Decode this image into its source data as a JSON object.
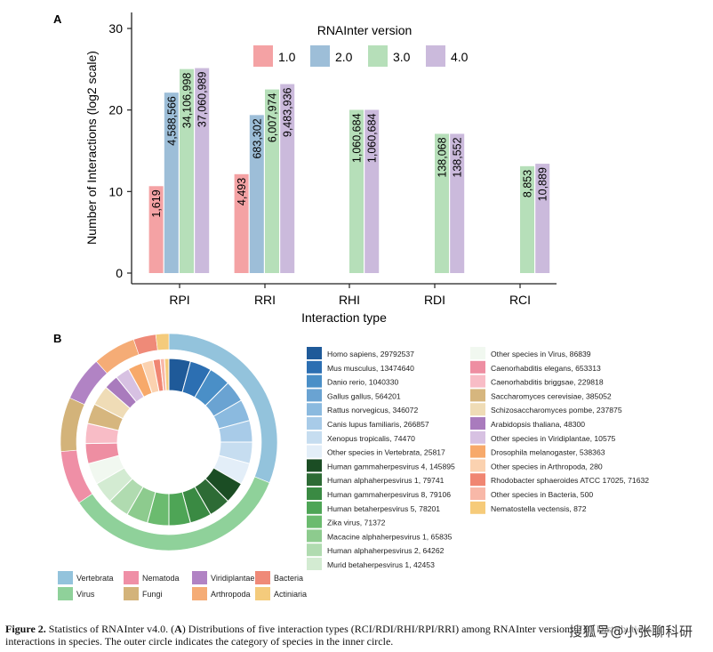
{
  "chart_data": [
    {
      "panel": "A",
      "type": "bar",
      "xlabel": "Interaction type",
      "ylabel": "Number of Interactions (log2 scale)",
      "ylim": [
        0,
        30
      ],
      "yticks": [
        0,
        10,
        20,
        30
      ],
      "legend_title": "RNAInter version",
      "categories": [
        "RPI",
        "RRI",
        "RHI",
        "RDI",
        "RCI"
      ],
      "series": [
        {
          "name": "1.0",
          "color": "#f4a2a4",
          "values": [
            10.66,
            12.13,
            null,
            null,
            null
          ],
          "labels": [
            "1,619",
            "4,493",
            "",
            "",
            ""
          ]
        },
        {
          "name": "2.0",
          "color": "#9dbed8",
          "values": [
            22.13,
            19.38,
            null,
            null,
            null
          ],
          "labels": [
            "4,588,566",
            "683,302",
            "",
            "",
            ""
          ]
        },
        {
          "name": "3.0",
          "color": "#b6dfb9",
          "values": [
            25.02,
            22.52,
            20.02,
            17.08,
            13.11
          ],
          "labels": [
            "34,106,998",
            "6,007,974",
            "1,060,684",
            "138,068",
            "8,853"
          ]
        },
        {
          "name": "4.0",
          "color": "#cbbadc",
          "values": [
            25.14,
            23.18,
            20.02,
            17.08,
            13.41
          ],
          "labels": [
            "37,060,989",
            "9,483,936",
            "1,060,684",
            "138,552",
            "10,889"
          ]
        }
      ]
    },
    {
      "panel": "B",
      "type": "pie",
      "inner_ring": [
        {
          "label": "Homo sapiens, 29792537",
          "color": "#1f5a99"
        },
        {
          "label": "Mus musculus, 13474640",
          "color": "#2c6fb2"
        },
        {
          "label": "Danio rerio, 1040330",
          "color": "#4a8fc7"
        },
        {
          "label": "Gallus gallus, 564201",
          "color": "#6aa3d2"
        },
        {
          "label": "Rattus norvegicus, 346072",
          "color": "#8bbadf"
        },
        {
          "label": "Canis lupus familiaris, 266857",
          "color": "#a8cbe8"
        },
        {
          "label": "Xenopus tropicalis, 74470",
          "color": "#c6ddf0"
        },
        {
          "label": "Other species in Vertebrata, 25817",
          "color": "#e3eef8"
        },
        {
          "label": "Human gammaherpesvirus 4, 145895",
          "color": "#1b4d24"
        },
        {
          "label": "Human alphaherpesvirus 1, 79741",
          "color": "#2d6b35"
        },
        {
          "label": "Human gammaherpesvirus 8, 79106",
          "color": "#3a8a43"
        },
        {
          "label": "Human betaherpesvirus 5, 78201",
          "color": "#4ea556"
        },
        {
          "label": "Zika virus, 71372",
          "color": "#6bbb6f"
        },
        {
          "label": "Macacine alphaherpesvirus 1, 65835",
          "color": "#8dcb8e"
        },
        {
          "label": "Human alphaherpesvirus 2, 64262",
          "color": "#b0dbb0"
        },
        {
          "label": "Murid betaherpesvirus 1, 42453",
          "color": "#d3ebd2"
        },
        {
          "label": "Other species in Virus, 86839",
          "color": "#f1f8f0"
        },
        {
          "label": "Caenorhabditis elegans, 653313",
          "color": "#ee8ea2"
        },
        {
          "label": "Caenorhabditis briggsae, 229818",
          "color": "#f8bcc6"
        },
        {
          "label": "Saccharomyces cerevisiae, 385052",
          "color": "#d6b67e"
        },
        {
          "label": "Schizosaccharomyces pombe, 237875",
          "color": "#efdcb6"
        },
        {
          "label": "Arabidopsis thaliana, 48300",
          "color": "#a97bbd"
        },
        {
          "label": "Other species in Viridiplantae, 10575",
          "color": "#d7c1e2"
        },
        {
          "label": "Drosophila melanogaster, 538363",
          "color": "#f7a96a"
        },
        {
          "label": "Other species in Arthropoda, 280",
          "color": "#fbd2b0"
        },
        {
          "label": "Rhodobacter sphaeroides ATCC 17025, 71632",
          "color": "#f08672"
        },
        {
          "label": "Other species in Bacteria, 500",
          "color": "#f8b8a8"
        },
        {
          "label": "Nematostella vectensis, 872",
          "color": "#f6cb7a"
        }
      ],
      "outer_ring": [
        {
          "label": "Vertebrata",
          "color": "#93c3dc"
        },
        {
          "label": "Virus",
          "color": "#8fd19a"
        },
        {
          "label": "Nematoda",
          "color": "#ef8fa6"
        },
        {
          "label": "Fungi",
          "color": "#d3b37a"
        },
        {
          "label": "Viridiplantae",
          "color": "#b183c4"
        },
        {
          "label": "Arthropoda",
          "color": "#f5ac76"
        },
        {
          "label": "Bacteria",
          "color": "#ef8a78"
        },
        {
          "label": "Actiniaria",
          "color": "#f4cb7c"
        }
      ]
    }
  ],
  "panel_labels": {
    "a": "A",
    "b": "B"
  },
  "caption": {
    "figure": "Figure 2.",
    "text_1": " Statistics of RNAInter v4.0. (",
    "a": "A",
    "text_2": ") Distributions of five interaction types (RCI/RDI/RHI/RPI/RRI) among RNAInter versions. (",
    "b": "B",
    "text_3": ") Distributions of interactions in species. The outer circle indicates the category of species in the inner circle."
  },
  "watermark": "搜狐号@小张聊科研"
}
